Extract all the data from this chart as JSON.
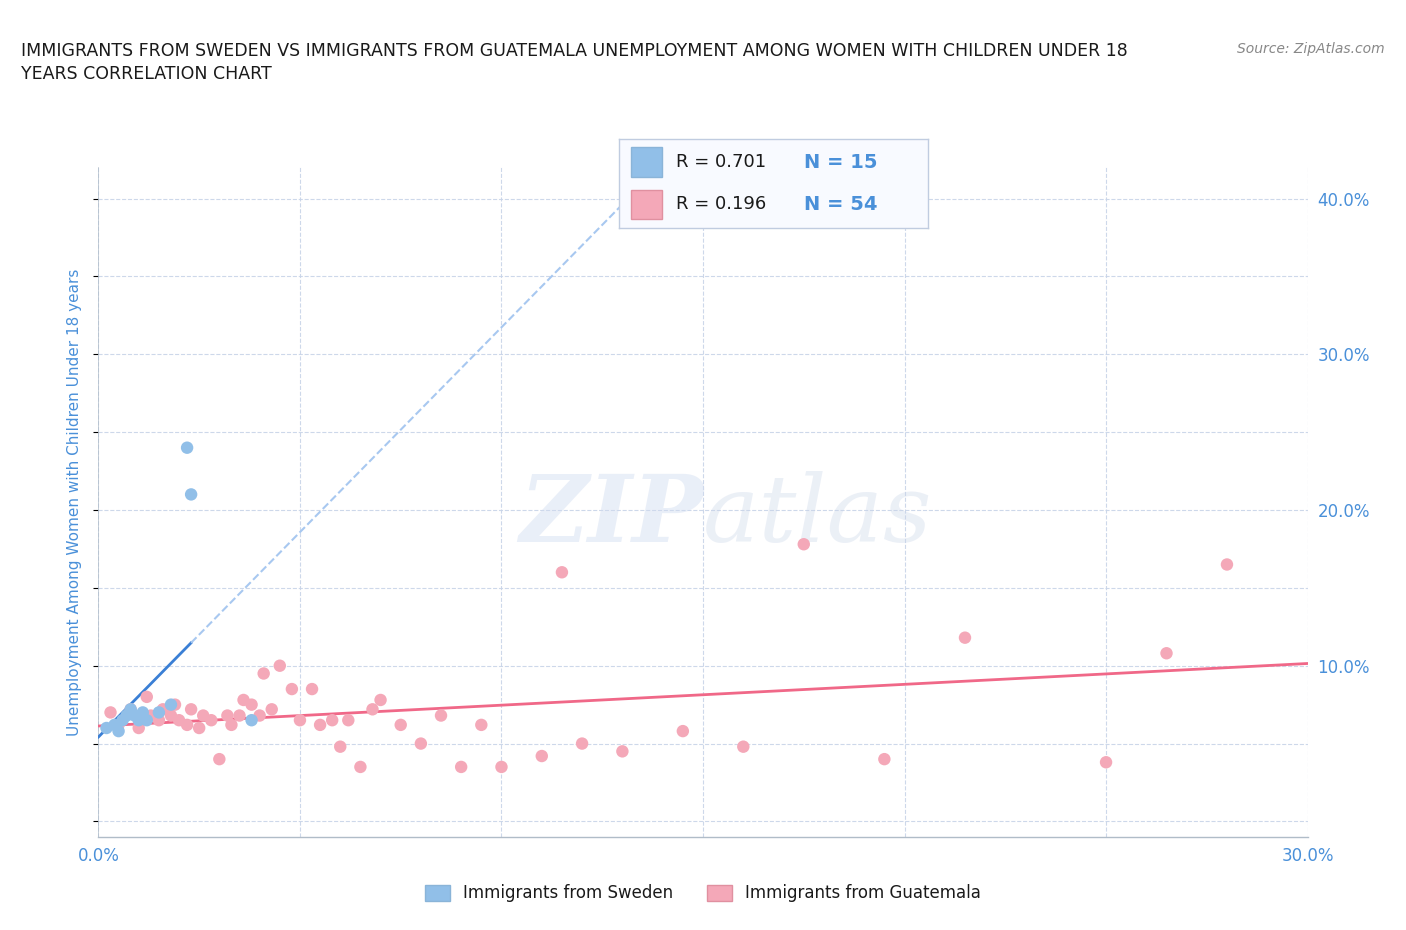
{
  "title_line1": "IMMIGRANTS FROM SWEDEN VS IMMIGRANTS FROM GUATEMALA UNEMPLOYMENT AMONG WOMEN WITH CHILDREN UNDER 18",
  "title_line2": "YEARS CORRELATION CHART",
  "source": "Source: ZipAtlas.com",
  "ylabel": "Unemployment Among Women with Children Under 18 years",
  "xlim": [
    0.0,
    0.3
  ],
  "ylim": [
    -0.01,
    0.42
  ],
  "xticks": [
    0.0,
    0.05,
    0.1,
    0.15,
    0.2,
    0.25,
    0.3
  ],
  "yticks": [
    0.0,
    0.05,
    0.1,
    0.15,
    0.2,
    0.25,
    0.3,
    0.35,
    0.4
  ],
  "ytick_labels_right": [
    "",
    "",
    "10.0%",
    "",
    "20.0%",
    "",
    "30.0%",
    "",
    "40.0%"
  ],
  "xtick_labels_bottom": [
    "0.0%",
    "",
    "",
    "",
    "",
    "",
    "30.0%"
  ],
  "sweden_color": "#91bfe8",
  "guatemala_color": "#f4a8b8",
  "sweden_trendline_solid_color": "#3a7fd5",
  "sweden_trendline_dashed_color": "#a8c8f0",
  "guatemala_trendline_color": "#f06888",
  "R_sweden": 0.701,
  "N_sweden": 15,
  "R_guatemala": 0.196,
  "N_guatemala": 54,
  "sweden_x": [
    0.002,
    0.004,
    0.005,
    0.006,
    0.007,
    0.008,
    0.009,
    0.01,
    0.011,
    0.012,
    0.015,
    0.018,
    0.022,
    0.023,
    0.038
  ],
  "sweden_y": [
    0.06,
    0.062,
    0.058,
    0.065,
    0.068,
    0.072,
    0.068,
    0.065,
    0.07,
    0.065,
    0.07,
    0.075,
    0.24,
    0.21,
    0.065
  ],
  "guatemala_x": [
    0.003,
    0.005,
    0.008,
    0.01,
    0.012,
    0.013,
    0.015,
    0.016,
    0.018,
    0.019,
    0.02,
    0.022,
    0.023,
    0.025,
    0.026,
    0.028,
    0.03,
    0.032,
    0.033,
    0.035,
    0.036,
    0.038,
    0.04,
    0.041,
    0.043,
    0.045,
    0.048,
    0.05,
    0.053,
    0.055,
    0.058,
    0.06,
    0.062,
    0.065,
    0.068,
    0.07,
    0.075,
    0.08,
    0.085,
    0.09,
    0.095,
    0.1,
    0.11,
    0.115,
    0.12,
    0.13,
    0.145,
    0.16,
    0.175,
    0.195,
    0.215,
    0.25,
    0.265,
    0.28
  ],
  "guatemala_y": [
    0.07,
    0.062,
    0.072,
    0.06,
    0.08,
    0.068,
    0.065,
    0.072,
    0.068,
    0.075,
    0.065,
    0.062,
    0.072,
    0.06,
    0.068,
    0.065,
    0.04,
    0.068,
    0.062,
    0.068,
    0.078,
    0.075,
    0.068,
    0.095,
    0.072,
    0.1,
    0.085,
    0.065,
    0.085,
    0.062,
    0.065,
    0.048,
    0.065,
    0.035,
    0.072,
    0.078,
    0.062,
    0.05,
    0.068,
    0.035,
    0.062,
    0.035,
    0.042,
    0.16,
    0.05,
    0.045,
    0.058,
    0.048,
    0.178,
    0.04,
    0.118,
    0.038,
    0.108,
    0.165
  ],
  "watermark_zip": "ZIP",
  "watermark_atlas": "atlas",
  "background_color": "#ffffff",
  "grid_color": "#c8d4e8",
  "title_color": "#1a1a1a",
  "axis_tick_color": "#4a90d9",
  "legend_text_color": "#1a1a1a",
  "legend_N_color": "#4a90d9",
  "legend_bg_color": "#f8faff",
  "legend_border_color": "#c0cce0",
  "source_color": "#888888"
}
